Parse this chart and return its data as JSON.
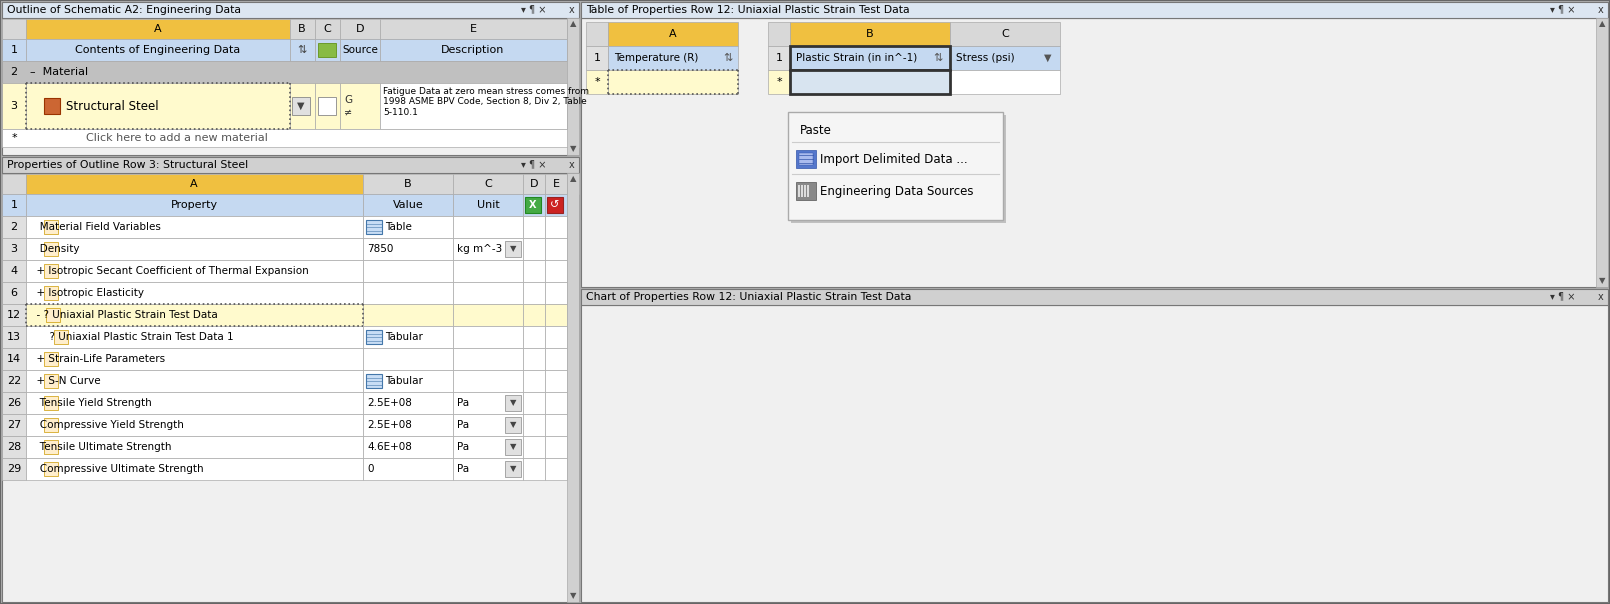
{
  "bg_color": "#f0f0f0",
  "panel_bg": "#ffffff",
  "header_blue": "#c5d9f1",
  "header_gold": "#f5c842",
  "row_yellow": "#fffacd",
  "border_color": "#999999",
  "title_bar_color": "#d4e4f7",
  "context_menu_bg": "#f5f5f5",
  "dotted_border": "#555555",
  "outline_title": "Outline of Schematic A2: Engineering Data",
  "props_title": "Properties of Outline Row 3: Structural Steel",
  "table_title": "Table of Properties Row 12: Uniaxial Plastic Strain Test Data",
  "chart_title": "Chart of Properties Row 12: Uniaxial Plastic Strain Test Data",
  "context_menu_items": [
    "Paste",
    "Import Delimited Data ...",
    "Engineering Data Sources"
  ],
  "props_rows": [
    {
      "num": "1",
      "a": "Property",
      "b": "Value",
      "c": "Unit",
      "style": "header_blue"
    },
    {
      "num": "2",
      "a": "   Material Field Variables",
      "b": "Table",
      "c": "",
      "style": "white"
    },
    {
      "num": "3",
      "a": "   Density",
      "b": "7850",
      "c": "kg m^-3",
      "style": "white"
    },
    {
      "num": "4",
      "a": "  + Isotropic Secant Coefficient of Thermal Expansion",
      "b": "",
      "c": "",
      "style": "white"
    },
    {
      "num": "6",
      "a": "  + Isotropic Elasticity",
      "b": "",
      "c": "",
      "style": "white"
    },
    {
      "num": "12",
      "a": "  - ? Uniaxial Plastic Strain Test Data",
      "b": "",
      "c": "",
      "style": "yellow_dotted"
    },
    {
      "num": "13",
      "a": "      ? Uniaxial Plastic Strain Test Data 1",
      "b": "Tabular",
      "c": "",
      "style": "white"
    },
    {
      "num": "14",
      "a": "  + Strain-Life Parameters",
      "b": "",
      "c": "",
      "style": "white"
    },
    {
      "num": "22",
      "a": "  + S-N Curve",
      "b": "Tabular",
      "c": "",
      "style": "white"
    },
    {
      "num": "26",
      "a": "   Tensile Yield Strength",
      "b": "2.5E+08",
      "c": "Pa",
      "style": "white"
    },
    {
      "num": "27",
      "a": "   Compressive Yield Strength",
      "b": "2.5E+08",
      "c": "Pa",
      "style": "white"
    },
    {
      "num": "28",
      "a": "   Tensile Ultimate Strength",
      "b": "4.6E+08",
      "c": "Pa",
      "style": "white"
    },
    {
      "num": "29",
      "a": "   Compressive Ultimate Strength",
      "b": "0",
      "c": "Pa",
      "style": "white"
    }
  ]
}
